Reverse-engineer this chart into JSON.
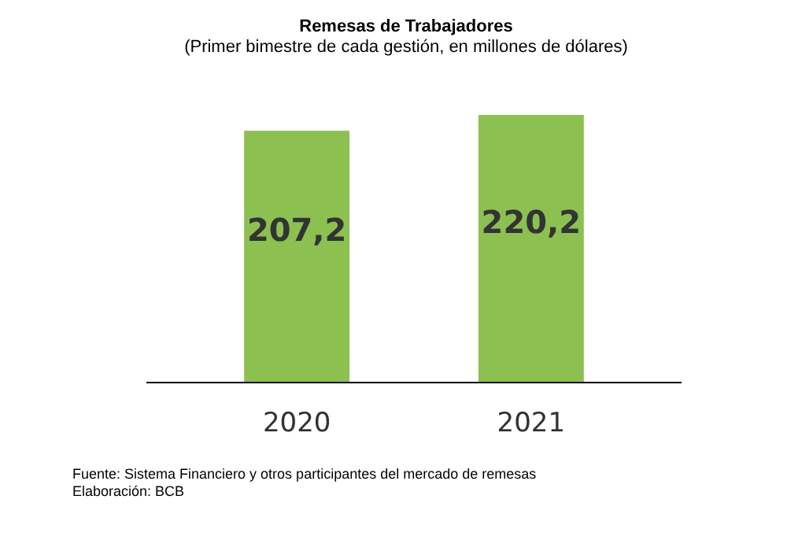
{
  "chart_data": {
    "type": "bar",
    "title": "Remesas de Trabajadores",
    "subtitle": "(Primer bimestre de cada gestión, en millones de dólares)",
    "categories": [
      "2020",
      "2021"
    ],
    "values": [
      207.2,
      220.2
    ],
    "value_labels": [
      "207,2",
      "220,2"
    ],
    "color": "#8cc152",
    "annotations": [
      "Fuente: Sistema Financiero y otros participantes del mercado de remesas",
      "Elaboración: BCB"
    ]
  }
}
